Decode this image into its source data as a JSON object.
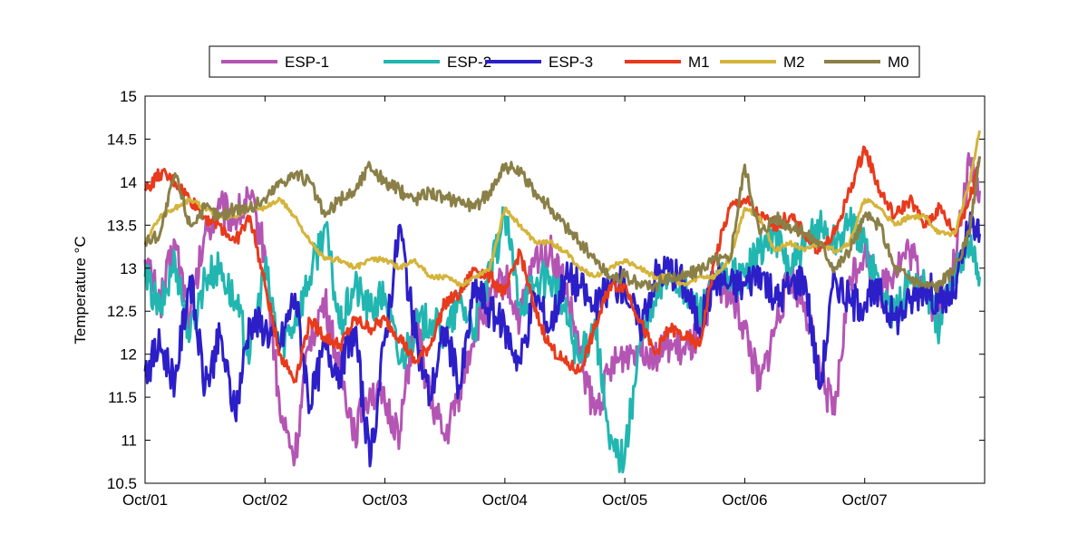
{
  "chart_data": {
    "type": "line",
    "title": "",
    "xlabel": "",
    "ylabel": "Temperature °C",
    "ylim": [
      10.5,
      15
    ],
    "xlim": [
      "2001-10-01",
      "2001-10-08"
    ],
    "x_ticks": [
      "Oct/01",
      "Oct/02",
      "Oct/03",
      "Oct/04",
      "Oct/05",
      "Oct/06",
      "Oct/07"
    ],
    "y_ticks": [
      "10.5",
      "11",
      "11.5",
      "12",
      "12.5",
      "13",
      "13.5",
      "14",
      "14.5",
      "15"
    ],
    "grid": false,
    "legend_position": "top-center",
    "series": [
      {
        "name": "ESP-1",
        "color": "#b455b4",
        "x": [
          "2001-10-01T00:00",
          "2001-10-01T03:00",
          "2001-10-01T06:00",
          "2001-10-01T09:00",
          "2001-10-01T12:00",
          "2001-10-01T15:00",
          "2001-10-01T18:00",
          "2001-10-01T21:00",
          "2001-10-02T00:00",
          "2001-10-02T03:00",
          "2001-10-02T06:00",
          "2001-10-02T09:00",
          "2001-10-02T12:00",
          "2001-10-02T15:00",
          "2001-10-02T18:00",
          "2001-10-02T21:00",
          "2001-10-03T00:00",
          "2001-10-03T03:00",
          "2001-10-03T06:00",
          "2001-10-03T09:00",
          "2001-10-03T12:00",
          "2001-10-03T15:00",
          "2001-10-03T18:00",
          "2001-10-03T21:00",
          "2001-10-04T00:00",
          "2001-10-04T03:00",
          "2001-10-04T06:00",
          "2001-10-04T09:00",
          "2001-10-04T12:00",
          "2001-10-04T15:00",
          "2001-10-04T18:00",
          "2001-10-04T21:00",
          "2001-10-05T00:00",
          "2001-10-05T03:00",
          "2001-10-05T06:00",
          "2001-10-05T09:00",
          "2001-10-05T12:00",
          "2001-10-05T15:00",
          "2001-10-05T18:00",
          "2001-10-05T21:00",
          "2001-10-06T00:00",
          "2001-10-06T03:00",
          "2001-10-06T06:00",
          "2001-10-06T09:00",
          "2001-10-06T12:00",
          "2001-10-06T15:00",
          "2001-10-06T18:00",
          "2001-10-06T21:00",
          "2001-10-07T00:00",
          "2001-10-07T03:00",
          "2001-10-07T06:00",
          "2001-10-07T09:00",
          "2001-10-07T12:00",
          "2001-10-07T15:00",
          "2001-10-07T18:00",
          "2001-10-07T21:00",
          "2001-10-07T23:00"
        ],
        "y": [
          13.1,
          12.6,
          13.3,
          12.4,
          13.4,
          13.7,
          13.6,
          13.8,
          13.2,
          11.3,
          10.8,
          12.2,
          12.6,
          11.8,
          11.1,
          11.6,
          11.4,
          11.1,
          12.4,
          11.5,
          11.0,
          11.6,
          12.3,
          12.6,
          12.9,
          12.4,
          13.1,
          13.2,
          12.8,
          12.0,
          11.3,
          11.8,
          12.0,
          12.1,
          12.0,
          12.1,
          12.0,
          12.2,
          12.9,
          12.7,
          12.3,
          11.6,
          12.3,
          12.9,
          12.6,
          11.8,
          11.3,
          12.9,
          13.2,
          12.7,
          13.0,
          13.2,
          12.8,
          12.4,
          13.1,
          14.2,
          13.9
        ]
      },
      {
        "name": "ESP-2",
        "color": "#22b6b1",
        "x": [
          "2001-10-01T00:00",
          "2001-10-01T03:00",
          "2001-10-01T06:00",
          "2001-10-01T09:00",
          "2001-10-01T12:00",
          "2001-10-01T15:00",
          "2001-10-01T18:00",
          "2001-10-01T21:00",
          "2001-10-02T00:00",
          "2001-10-02T03:00",
          "2001-10-02T06:00",
          "2001-10-02T09:00",
          "2001-10-02T12:00",
          "2001-10-02T15:00",
          "2001-10-02T18:00",
          "2001-10-02T21:00",
          "2001-10-03T00:00",
          "2001-10-03T03:00",
          "2001-10-03T06:00",
          "2001-10-03T09:00",
          "2001-10-03T12:00",
          "2001-10-03T15:00",
          "2001-10-03T18:00",
          "2001-10-03T21:00",
          "2001-10-04T00:00",
          "2001-10-04T03:00",
          "2001-10-04T06:00",
          "2001-10-04T09:00",
          "2001-10-04T12:00",
          "2001-10-04T15:00",
          "2001-10-04T18:00",
          "2001-10-04T21:00",
          "2001-10-05T00:00",
          "2001-10-05T03:00",
          "2001-10-05T06:00",
          "2001-10-05T09:00",
          "2001-10-05T12:00",
          "2001-10-05T15:00",
          "2001-10-05T18:00",
          "2001-10-05T21:00",
          "2001-10-06T00:00",
          "2001-10-06T03:00",
          "2001-10-06T06:00",
          "2001-10-06T09:00",
          "2001-10-06T12:00",
          "2001-10-06T15:00",
          "2001-10-06T18:00",
          "2001-10-06T21:00",
          "2001-10-07T00:00",
          "2001-10-07T03:00",
          "2001-10-07T06:00",
          "2001-10-07T09:00",
          "2001-10-07T12:00",
          "2001-10-07T15:00",
          "2001-10-07T18:00",
          "2001-10-07T21:00",
          "2001-10-07T23:00"
        ],
        "y": [
          12.9,
          12.5,
          13.1,
          12.2,
          12.9,
          13.0,
          12.6,
          12.0,
          13.0,
          12.1,
          12.4,
          12.9,
          13.5,
          12.3,
          12.8,
          12.5,
          12.7,
          11.9,
          12.3,
          12.4,
          12.2,
          12.6,
          12.3,
          12.9,
          13.6,
          12.6,
          12.8,
          12.9,
          12.5,
          11.9,
          12.4,
          10.9,
          10.8,
          12.1,
          12.6,
          13.0,
          12.7,
          12.5,
          12.8,
          12.9,
          12.9,
          13.2,
          13.4,
          13.0,
          13.2,
          13.5,
          13.3,
          13.5,
          13.3,
          12.8,
          12.4,
          12.9,
          12.8,
          12.3,
          13.0,
          13.3,
          12.9
        ]
      },
      {
        "name": "ESP-3",
        "color": "#2c1fc8",
        "x": [
          "2001-10-01T00:00",
          "2001-10-01T03:00",
          "2001-10-01T06:00",
          "2001-10-01T09:00",
          "2001-10-01T12:00",
          "2001-10-01T15:00",
          "2001-10-01T18:00",
          "2001-10-01T21:00",
          "2001-10-02T00:00",
          "2001-10-02T03:00",
          "2001-10-02T06:00",
          "2001-10-02T09:00",
          "2001-10-02T12:00",
          "2001-10-02T15:00",
          "2001-10-02T18:00",
          "2001-10-02T21:00",
          "2001-10-03T00:00",
          "2001-10-03T03:00",
          "2001-10-03T06:00",
          "2001-10-03T09:00",
          "2001-10-03T12:00",
          "2001-10-03T15:00",
          "2001-10-03T18:00",
          "2001-10-03T21:00",
          "2001-10-04T00:00",
          "2001-10-04T03:00",
          "2001-10-04T06:00",
          "2001-10-04T09:00",
          "2001-10-04T12:00",
          "2001-10-04T15:00",
          "2001-10-04T18:00",
          "2001-10-04T21:00",
          "2001-10-05T00:00",
          "2001-10-05T03:00",
          "2001-10-05T06:00",
          "2001-10-05T09:00",
          "2001-10-05T12:00",
          "2001-10-05T15:00",
          "2001-10-05T18:00",
          "2001-10-05T21:00",
          "2001-10-06T00:00",
          "2001-10-06T03:00",
          "2001-10-06T06:00",
          "2001-10-06T09:00",
          "2001-10-06T12:00",
          "2001-10-06T15:00",
          "2001-10-06T18:00",
          "2001-10-06T21:00",
          "2001-10-07T00:00",
          "2001-10-07T03:00",
          "2001-10-07T06:00",
          "2001-10-07T09:00",
          "2001-10-07T12:00",
          "2001-10-07T15:00",
          "2001-10-07T18:00",
          "2001-10-07T21:00",
          "2001-10-07T23:00"
        ],
        "y": [
          11.8,
          12.1,
          11.7,
          12.9,
          11.6,
          12.2,
          11.3,
          12.4,
          12.3,
          12.1,
          12.7,
          11.4,
          12.1,
          11.8,
          12.3,
          10.7,
          12.2,
          13.5,
          12.2,
          11.5,
          12.3,
          11.6,
          12.8,
          12.5,
          12.3,
          11.9,
          12.7,
          12.3,
          12.9,
          12.8,
          12.5,
          12.8,
          12.8,
          12.3,
          12.9,
          13.0,
          12.8,
          12.3,
          12.9,
          12.8,
          12.8,
          13.0,
          12.6,
          12.8,
          12.9,
          11.6,
          12.9,
          12.6,
          12.6,
          12.7,
          12.4,
          12.6,
          12.8,
          12.6,
          12.7,
          13.5,
          13.4
        ]
      },
      {
        "name": "M1",
        "color": "#e83a1c",
        "x": [
          "2001-10-01T00:00",
          "2001-10-01T03:00",
          "2001-10-01T06:00",
          "2001-10-01T09:00",
          "2001-10-01T12:00",
          "2001-10-01T15:00",
          "2001-10-01T18:00",
          "2001-10-01T21:00",
          "2001-10-02T00:00",
          "2001-10-02T03:00",
          "2001-10-02T06:00",
          "2001-10-02T09:00",
          "2001-10-02T12:00",
          "2001-10-02T15:00",
          "2001-10-02T18:00",
          "2001-10-02T21:00",
          "2001-10-03T00:00",
          "2001-10-03T03:00",
          "2001-10-03T06:00",
          "2001-10-03T09:00",
          "2001-10-03T12:00",
          "2001-10-03T15:00",
          "2001-10-03T18:00",
          "2001-10-03T21:00",
          "2001-10-04T00:00",
          "2001-10-04T03:00",
          "2001-10-04T06:00",
          "2001-10-04T09:00",
          "2001-10-04T12:00",
          "2001-10-04T15:00",
          "2001-10-04T18:00",
          "2001-10-04T21:00",
          "2001-10-05T00:00",
          "2001-10-05T03:00",
          "2001-10-05T06:00",
          "2001-10-05T09:00",
          "2001-10-05T12:00",
          "2001-10-05T15:00",
          "2001-10-05T18:00",
          "2001-10-05T21:00",
          "2001-10-06T00:00",
          "2001-10-06T03:00",
          "2001-10-06T06:00",
          "2001-10-06T09:00",
          "2001-10-06T12:00",
          "2001-10-06T15:00",
          "2001-10-06T18:00",
          "2001-10-06T21:00",
          "2001-10-07T00:00",
          "2001-10-07T03:00",
          "2001-10-07T06:00",
          "2001-10-07T09:00",
          "2001-10-07T12:00",
          "2001-10-07T15:00",
          "2001-10-07T18:00",
          "2001-10-07T21:00",
          "2001-10-07T23:00"
        ],
        "y": [
          13.9,
          14.1,
          14.0,
          13.8,
          13.6,
          13.5,
          13.3,
          13.6,
          12.8,
          12.0,
          11.7,
          12.4,
          12.2,
          12.1,
          12.4,
          12.3,
          12.4,
          12.2,
          11.9,
          12.1,
          12.6,
          12.7,
          13.0,
          12.9,
          12.7,
          13.2,
          12.5,
          12.1,
          11.9,
          11.8,
          12.3,
          12.8,
          12.8,
          12.4,
          12.0,
          12.3,
          12.2,
          12.1,
          13.1,
          13.7,
          13.8,
          13.6,
          13.5,
          13.6,
          13.4,
          13.2,
          13.4,
          13.9,
          14.4,
          13.9,
          13.6,
          13.8,
          13.5,
          13.7,
          13.4,
          13.8,
          14.3
        ]
      },
      {
        "name": "M2",
        "color": "#d4b43a",
        "x": [
          "2001-10-01T00:00",
          "2001-10-01T03:00",
          "2001-10-01T06:00",
          "2001-10-01T09:00",
          "2001-10-01T12:00",
          "2001-10-01T15:00",
          "2001-10-01T18:00",
          "2001-10-01T21:00",
          "2001-10-02T00:00",
          "2001-10-02T03:00",
          "2001-10-02T06:00",
          "2001-10-02T09:00",
          "2001-10-02T12:00",
          "2001-10-02T15:00",
          "2001-10-02T18:00",
          "2001-10-02T21:00",
          "2001-10-03T00:00",
          "2001-10-03T03:00",
          "2001-10-03T06:00",
          "2001-10-03T09:00",
          "2001-10-03T12:00",
          "2001-10-03T15:00",
          "2001-10-03T18:00",
          "2001-10-03T21:00",
          "2001-10-04T00:00",
          "2001-10-04T03:00",
          "2001-10-04T06:00",
          "2001-10-04T09:00",
          "2001-10-04T12:00",
          "2001-10-04T15:00",
          "2001-10-04T18:00",
          "2001-10-04T21:00",
          "2001-10-05T00:00",
          "2001-10-05T03:00",
          "2001-10-05T06:00",
          "2001-10-05T09:00",
          "2001-10-05T12:00",
          "2001-10-05T15:00",
          "2001-10-05T18:00",
          "2001-10-05T21:00",
          "2001-10-06T00:00",
          "2001-10-06T03:00",
          "2001-10-06T06:00",
          "2001-10-06T09:00",
          "2001-10-06T12:00",
          "2001-10-06T15:00",
          "2001-10-06T18:00",
          "2001-10-06T21:00",
          "2001-10-07T00:00",
          "2001-10-07T03:00",
          "2001-10-07T06:00",
          "2001-10-07T09:00",
          "2001-10-07T12:00",
          "2001-10-07T15:00",
          "2001-10-07T18:00",
          "2001-10-07T21:00",
          "2001-10-07T23:00"
        ],
        "y": [
          13.3,
          13.6,
          13.7,
          13.8,
          13.7,
          13.6,
          13.6,
          13.7,
          13.7,
          13.8,
          13.6,
          13.3,
          13.1,
          13.1,
          13.0,
          13.1,
          13.1,
          13.0,
          13.1,
          12.9,
          12.9,
          12.8,
          12.9,
          13.0,
          13.7,
          13.5,
          13.3,
          13.3,
          13.2,
          13.0,
          12.9,
          13.0,
          13.1,
          13.0,
          12.9,
          12.9,
          12.8,
          12.9,
          12.9,
          13.1,
          13.7,
          13.6,
          13.2,
          13.3,
          13.2,
          13.3,
          13.2,
          13.3,
          13.8,
          13.7,
          13.5,
          13.6,
          13.6,
          13.4,
          13.4,
          14.0,
          14.6
        ]
      },
      {
        "name": "M0",
        "color": "#8a7f47",
        "x": [
          "2001-10-01T00:00",
          "2001-10-01T03:00",
          "2001-10-01T06:00",
          "2001-10-01T09:00",
          "2001-10-01T12:00",
          "2001-10-01T15:00",
          "2001-10-01T18:00",
          "2001-10-01T21:00",
          "2001-10-02T00:00",
          "2001-10-02T03:00",
          "2001-10-02T06:00",
          "2001-10-02T09:00",
          "2001-10-02T12:00",
          "2001-10-02T15:00",
          "2001-10-02T18:00",
          "2001-10-02T21:00",
          "2001-10-03T00:00",
          "2001-10-03T03:00",
          "2001-10-03T06:00",
          "2001-10-03T09:00",
          "2001-10-03T12:00",
          "2001-10-03T15:00",
          "2001-10-03T18:00",
          "2001-10-03T21:00",
          "2001-10-04T00:00",
          "2001-10-04T03:00",
          "2001-10-04T06:00",
          "2001-10-04T09:00",
          "2001-10-04T12:00",
          "2001-10-04T15:00",
          "2001-10-04T18:00",
          "2001-10-04T21:00",
          "2001-10-05T00:00",
          "2001-10-05T03:00",
          "2001-10-05T06:00",
          "2001-10-05T09:00",
          "2001-10-05T12:00",
          "2001-10-05T15:00",
          "2001-10-05T18:00",
          "2001-10-05T21:00",
          "2001-10-06T00:00",
          "2001-10-06T03:00",
          "2001-10-06T06:00",
          "2001-10-06T09:00",
          "2001-10-06T12:00",
          "2001-10-06T15:00",
          "2001-10-06T18:00",
          "2001-10-06T21:00",
          "2001-10-07T00:00",
          "2001-10-07T03:00",
          "2001-10-07T06:00",
          "2001-10-07T09:00",
          "2001-10-07T12:00",
          "2001-10-07T15:00",
          "2001-10-07T18:00",
          "2001-10-07T21:00",
          "2001-10-07T23:00"
        ],
        "y": [
          13.3,
          13.4,
          14.1,
          13.5,
          13.7,
          13.6,
          13.7,
          13.7,
          13.8,
          14.0,
          14.1,
          14.0,
          13.6,
          13.8,
          13.9,
          14.2,
          14.0,
          13.9,
          13.8,
          13.9,
          13.8,
          13.8,
          13.7,
          13.9,
          14.2,
          14.1,
          13.9,
          13.7,
          13.5,
          13.3,
          13.1,
          12.9,
          12.9,
          12.8,
          12.8,
          12.9,
          12.9,
          13.0,
          13.1,
          13.1,
          14.2,
          13.4,
          13.6,
          13.5,
          13.4,
          13.3,
          13.0,
          13.2,
          13.6,
          13.5,
          13.0,
          12.9,
          12.8,
          12.8,
          13.0,
          13.4,
          14.3
        ]
      }
    ]
  }
}
